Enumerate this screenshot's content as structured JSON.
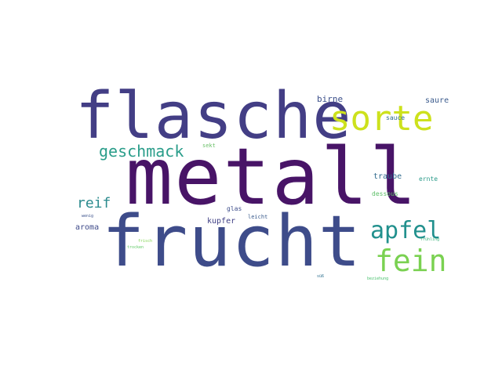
{
  "words": [
    {
      "text": "metall",
      "color": "#481467"
    },
    {
      "text": "flasche",
      "color": "#433E85"
    },
    {
      "text": "frucht",
      "color": "#3E4C8A"
    },
    {
      "text": "sorte",
      "color": "#CDE11D"
    },
    {
      "text": "apfel",
      "color": "#21908D"
    },
    {
      "text": "fein",
      "color": "#7AD151"
    },
    {
      "text": "geschmack",
      "color": "#2A9D8A"
    },
    {
      "text": "reif",
      "color": "#2C8B8E"
    },
    {
      "text": "birne",
      "color": "#3B4F8A"
    },
    {
      "text": "saure",
      "color": "#3A5A8C"
    },
    {
      "text": "sauce",
      "color": "#2F6C8E"
    },
    {
      "text": "sekt",
      "color": "#6CC06A"
    },
    {
      "text": "traube",
      "color": "#2F6A8D"
    },
    {
      "text": "ernte",
      "color": "#2C9B8A"
    },
    {
      "text": "dessous",
      "color": "#5BBE66"
    },
    {
      "text": "glas",
      "color": "#3D4D8A"
    },
    {
      "text": "leicht",
      "color": "#3A5B8C"
    },
    {
      "text": "kupfer",
      "color": "#3E3E84"
    },
    {
      "text": "aroma",
      "color": "#3E4A89"
    },
    {
      "text": "wenig",
      "color": "#3B518B"
    },
    {
      "text": "frisch",
      "color": "#7FD34E"
    },
    {
      "text": "trocken",
      "color": "#5DC863"
    },
    {
      "text": "frühling",
      "color": "#3BB47A"
    },
    {
      "text": "süß",
      "color": "#2B6E8E"
    },
    {
      "text": "beziehung",
      "color": "#49C16D"
    }
  ]
}
